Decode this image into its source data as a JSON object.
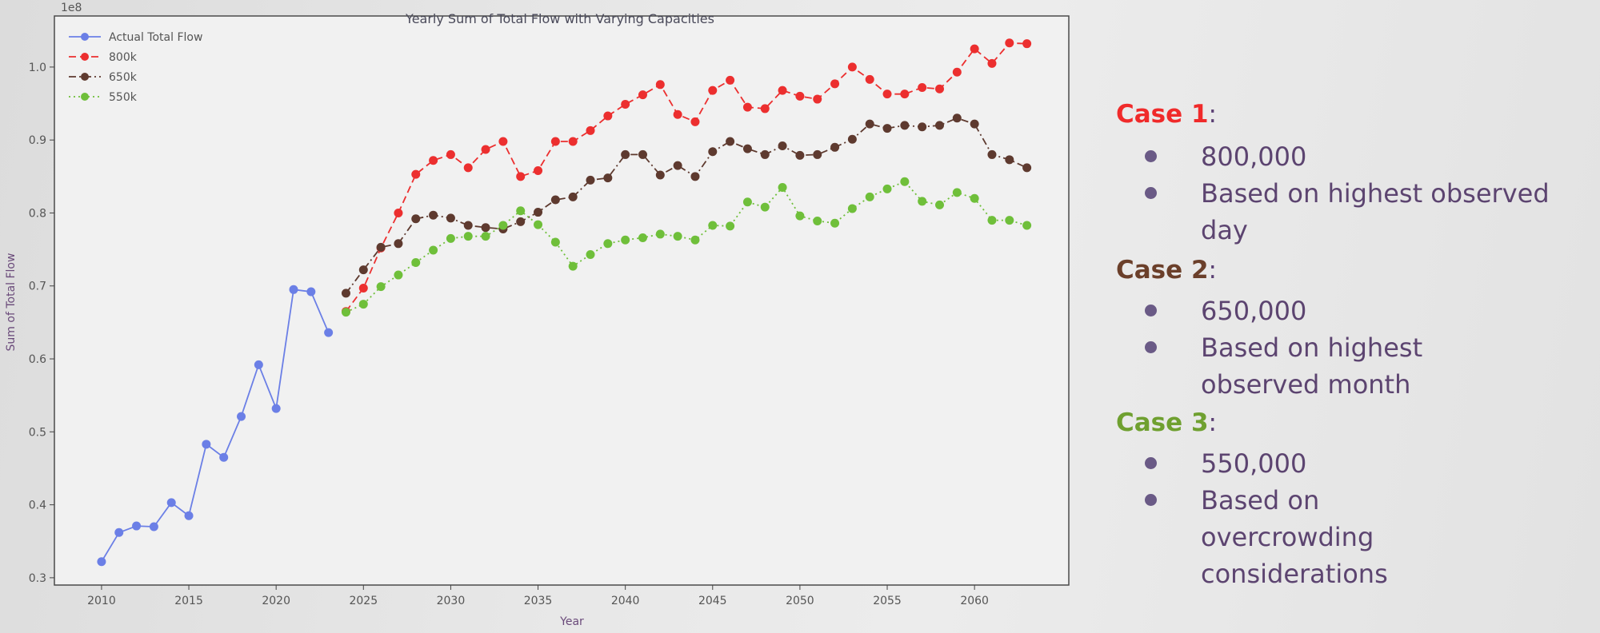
{
  "chart_data": {
    "type": "line",
    "title": "Yearly Sum of Total Flow with Varying Capacities",
    "xlabel": "Year",
    "ylabel": "Sum of Total Flow",
    "y_scale_label": "1e8",
    "xlim": [
      2007.3,
      2065.4
    ],
    "ylim": [
      0.29,
      1.07
    ],
    "x_ticks": [
      2010,
      2015,
      2020,
      2025,
      2030,
      2035,
      2040,
      2045,
      2050,
      2055,
      2060
    ],
    "y_ticks": [
      0.3,
      0.4,
      0.5,
      0.6,
      0.7,
      0.8,
      0.9,
      1.0
    ],
    "x_tick_labels": [
      "2010",
      "2015",
      "2020",
      "2025",
      "2030",
      "2035",
      "2040",
      "2045",
      "2050",
      "2055",
      "2060"
    ],
    "y_tick_labels": [
      "0.3",
      "0.4",
      "0.5",
      "0.6",
      "0.7",
      "0.8",
      "0.9",
      "1.0"
    ],
    "legend_position": "top-left",
    "grid": false,
    "series": [
      {
        "name": "Actual Total Flow",
        "color": "#6b7fe6",
        "style": "solid",
        "x": [
          2010,
          2011,
          2012,
          2013,
          2014,
          2015,
          2016,
          2017,
          2018,
          2019,
          2020,
          2021,
          2022,
          2023
        ],
        "values": [
          0.322,
          0.362,
          0.371,
          0.37,
          0.403,
          0.385,
          0.483,
          0.465,
          0.521,
          0.592,
          0.532,
          0.695,
          0.692,
          0.636
        ]
      },
      {
        "name": "800k",
        "color": "#ec2f2f",
        "style": "dashed",
        "x": [
          2024,
          2025,
          2026,
          2027,
          2028,
          2029,
          2030,
          2031,
          2032,
          2033,
          2034,
          2035,
          2036,
          2037,
          2038,
          2039,
          2040,
          2041,
          2042,
          2043,
          2044,
          2045,
          2046,
          2047,
          2048,
          2049,
          2050,
          2051,
          2052,
          2053,
          2054,
          2055,
          2056,
          2057,
          2058,
          2059,
          2060,
          2061,
          2062,
          2063
        ],
        "values": [
          0.665,
          0.697,
          0.752,
          0.8,
          0.853,
          0.872,
          0.88,
          0.862,
          0.887,
          0.898,
          0.85,
          0.858,
          0.898,
          0.898,
          0.913,
          0.933,
          0.949,
          0.962,
          0.976,
          0.935,
          0.925,
          0.968,
          0.982,
          0.945,
          0.943,
          0.968,
          0.96,
          0.956,
          0.977,
          1.0,
          0.983,
          0.963,
          0.963,
          0.972,
          0.97,
          0.993,
          1.025,
          1.005,
          1.033,
          1.032
        ]
      },
      {
        "name": "650k",
        "color": "#5e3a2f",
        "style": "dashdot",
        "x": [
          2024,
          2025,
          2026,
          2027,
          2028,
          2029,
          2030,
          2031,
          2032,
          2033,
          2034,
          2035,
          2036,
          2037,
          2038,
          2039,
          2040,
          2041,
          2042,
          2043,
          2044,
          2045,
          2046,
          2047,
          2048,
          2049,
          2050,
          2051,
          2052,
          2053,
          2054,
          2055,
          2056,
          2057,
          2058,
          2059,
          2060,
          2061,
          2062,
          2063
        ],
        "values": [
          0.69,
          0.722,
          0.753,
          0.758,
          0.792,
          0.797,
          0.793,
          0.783,
          0.78,
          0.778,
          0.788,
          0.801,
          0.818,
          0.822,
          0.845,
          0.848,
          0.88,
          0.88,
          0.852,
          0.865,
          0.85,
          0.884,
          0.898,
          0.888,
          0.88,
          0.892,
          0.879,
          0.88,
          0.89,
          0.901,
          0.922,
          0.916,
          0.92,
          0.918,
          0.92,
          0.93,
          0.922,
          0.88,
          0.873,
          0.862
        ]
      },
      {
        "name": "550k",
        "color": "#6fbf3a",
        "style": "dotted",
        "x": [
          2024,
          2025,
          2026,
          2027,
          2028,
          2029,
          2030,
          2031,
          2032,
          2033,
          2034,
          2035,
          2036,
          2037,
          2038,
          2039,
          2040,
          2041,
          2042,
          2043,
          2044,
          2045,
          2046,
          2047,
          2048,
          2049,
          2050,
          2051,
          2052,
          2053,
          2054,
          2055,
          2056,
          2057,
          2058,
          2059,
          2060,
          2061,
          2062,
          2063
        ],
        "values": [
          0.664,
          0.675,
          0.699,
          0.715,
          0.732,
          0.749,
          0.765,
          0.768,
          0.768,
          0.783,
          0.803,
          0.784,
          0.76,
          0.727,
          0.743,
          0.758,
          0.763,
          0.766,
          0.771,
          0.768,
          0.763,
          0.783,
          0.782,
          0.815,
          0.808,
          0.835,
          0.796,
          0.789,
          0.786,
          0.806,
          0.822,
          0.833,
          0.843,
          0.816,
          0.811,
          0.828,
          0.82,
          0.79,
          0.79,
          0.783
        ]
      }
    ]
  },
  "cases": [
    {
      "title": "Case 1",
      "colon": ":",
      "color": "#f02a2a",
      "items": [
        "800,000",
        "Based on highest observed day"
      ]
    },
    {
      "title": "Case 2",
      "colon": ":",
      "color": "#6b3f2a",
      "items": [
        "650,000",
        "Based on highest observed month"
      ]
    },
    {
      "title": "Case 3",
      "colon": ":",
      "color": "#6fa030",
      "items": [
        "550,000",
        "Based on overcrowding considerations"
      ]
    }
  ]
}
